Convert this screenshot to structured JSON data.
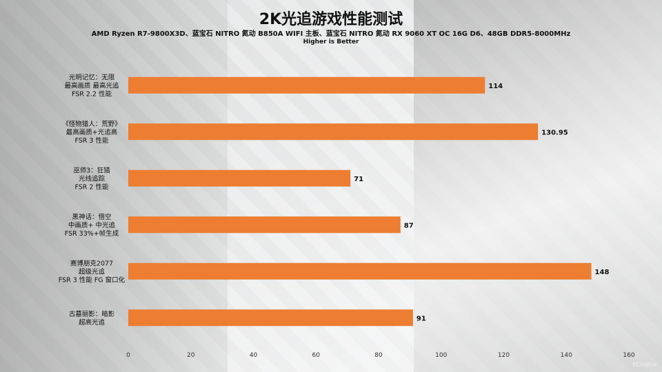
{
  "title": "2K光追游戏性能测试",
  "subtitle": "AMD Ryzen R7-9800X3D、蓝宝石 NITRO 氮动 B850A WIFI 主板、蓝宝石 NITRO 氮动 RX 9060 XT OC 16G D6、48GB DDR5-8000MHz",
  "note": "Higher is Better",
  "watermark": "PConline",
  "chart_data": {
    "type": "bar",
    "orientation": "horizontal",
    "bar_color": "#ED7D31",
    "categories": [
      [
        "光明记忆：无限",
        "最高画质 最高光追",
        "FSR 2.2 性能"
      ],
      [
        "《怪物猎人：荒野》",
        "最高画质+光追高",
        "FSR 3 性能"
      ],
      [
        "巫师3：狂猎",
        "光线追踪",
        "FSR 2 性能"
      ],
      [
        "黑神话：悟空",
        "中画质+ 中光追",
        "FSR 33%+帧生成"
      ],
      [
        "赛博朋克2077",
        "超级光追",
        "FSR 3 性能 FG 窗口化"
      ],
      [
        "古墓丽影：暗影",
        "超高光追"
      ]
    ],
    "values": [
      114,
      130.95,
      71,
      87,
      148,
      91
    ],
    "value_labels": [
      "114",
      "130.95",
      "71",
      "87",
      "148",
      "91"
    ],
    "xlim": [
      0,
      160
    ],
    "xticks": [
      0,
      20,
      40,
      60,
      80,
      100,
      120,
      140,
      160
    ],
    "grid": false,
    "legend": "none"
  }
}
